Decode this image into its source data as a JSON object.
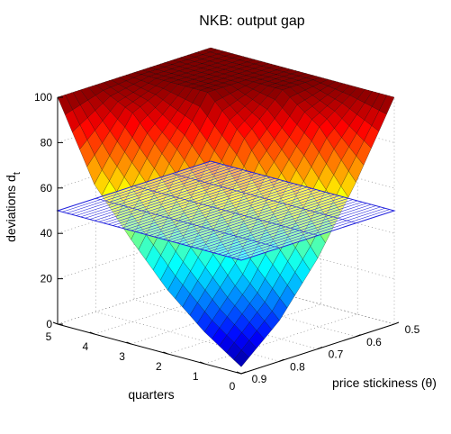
{
  "chart_data": {
    "type": "surface3d",
    "title": "NKB: output gap",
    "zlabel": "deviations d",
    "zlabel_subscript": "t",
    "xlabel": "quarters",
    "ylabel": "price stickiness (θ)",
    "x_ticks": [
      "0",
      "1",
      "2",
      "3",
      "4",
      "5"
    ],
    "y_ticks": [
      "0.5",
      "0.6",
      "0.7",
      "0.8",
      "0.9"
    ],
    "z_ticks": [
      "0",
      "20",
      "40",
      "60",
      "80",
      "100"
    ],
    "xlim": [
      0,
      5
    ],
    "ylim": [
      0.5,
      0.9
    ],
    "zlim": [
      0,
      100
    ],
    "colormap": "jet",
    "grid": true,
    "quarters": [
      0,
      1,
      2,
      3,
      4,
      5
    ],
    "theta": [
      0.5,
      0.6,
      0.7,
      0.8,
      0.9
    ],
    "surface": [
      {
        "theta": 0.5,
        "values": [
          100,
          100,
          100,
          100,
          100,
          100
        ]
      },
      {
        "theta": 0.6,
        "values": [
          68,
          88,
          100,
          100,
          100,
          100
        ]
      },
      {
        "theta": 0.7,
        "values": [
          40,
          62,
          84,
          100,
          100,
          100
        ]
      },
      {
        "theta": 0.8,
        "values": [
          18,
          34,
          54,
          74,
          92,
          100
        ]
      },
      {
        "theta": 0.9,
        "values": [
          3,
          14,
          28,
          46,
          66,
          100
        ]
      }
    ],
    "reference_plane": {
      "value": 50,
      "color": "#2222dd"
    }
  }
}
